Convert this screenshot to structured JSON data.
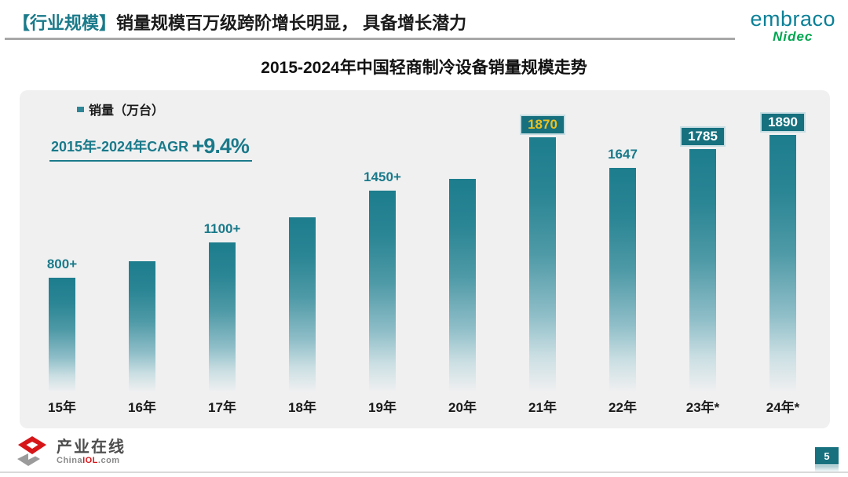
{
  "header": {
    "tag": "【行业规模】",
    "title": "销量规模百万级跨阶增长明显， 具备增长潜力",
    "brand_primary": "embraco",
    "brand_secondary": "Nidec"
  },
  "chart": {
    "title": "2015-2024年中国轻商制冷设备销量规模走势",
    "legend_label": "销量（万台）",
    "cagr_label": "2015年-2024年CAGR",
    "cagr_value": "+9.4%"
  },
  "chart_data": {
    "type": "bar",
    "title": "2015-2024年中国轻商制冷设备销量规模走势",
    "ylabel": "销量（万台）",
    "categories": [
      "15年",
      "16年",
      "17年",
      "18年",
      "19年",
      "20年",
      "21年",
      "22年",
      "23年*",
      "24年*"
    ],
    "values": [
      840,
      965,
      1100,
      1285,
      1480,
      1565,
      1870,
      1647,
      1785,
      1890
    ],
    "data_labels": [
      "800+",
      "",
      "1100+",
      "",
      "1450+",
      "",
      "1870",
      "1647",
      "1785",
      "1890"
    ],
    "label_styles": [
      "plain",
      "none",
      "plain",
      "none",
      "plain",
      "none",
      "box-gold",
      "plain",
      "box-white",
      "box-white"
    ],
    "ylim": [
      0,
      2000
    ],
    "grid": false,
    "legend_position": "top-left",
    "annotation": "2015年-2024年CAGR +9.4%",
    "note": "values for unlabeled bars estimated from bar heights"
  },
  "footer": {
    "logo_text": "产业在线",
    "logo_sub_parts": [
      "China",
      "IOL",
      ".com"
    ],
    "page_number": "5"
  },
  "colors": {
    "teal_text": "#1a7a8a",
    "bar_top": "#1d7d8d",
    "label_box": "#16707e",
    "label_box_border": "#c5dde2",
    "gold_label": "#ecc01e",
    "brand_teal": "#0b8097",
    "brand_green": "#00a650",
    "panel_bg": "#f0f0f1",
    "header_line": "#a8a8a8"
  }
}
